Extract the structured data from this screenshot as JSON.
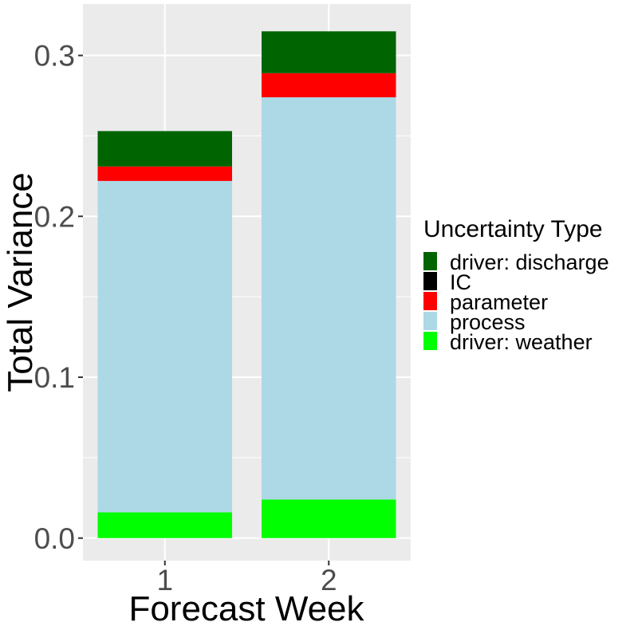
{
  "chart_data": {
    "type": "bar",
    "stacked": true,
    "xlabel": "Forecast Week",
    "ylabel": "Total Variance",
    "categories": [
      "1",
      "2"
    ],
    "ylim": [
      -0.014,
      0.332
    ],
    "yticks": [
      0.0,
      0.1,
      0.2,
      0.3
    ],
    "ytick_labels": [
      "0.0",
      "0.1",
      "0.2",
      "0.3"
    ],
    "grid": true,
    "background": "#ebebeb",
    "legend": {
      "title": "Uncertainty Type",
      "position": "right",
      "entries": [
        {
          "label": "driver: discharge",
          "color": "#006400"
        },
        {
          "label": "IC",
          "color": "#000000"
        },
        {
          "label": "parameter",
          "color": "#ff0000"
        },
        {
          "label": "process",
          "color": "#add8e6"
        },
        {
          "label": "driver: weather",
          "color": "#00ff00"
        }
      ]
    },
    "stack_order_bottom_to_top": [
      "driver: weather",
      "process",
      "IC",
      "parameter",
      "driver: discharge"
    ],
    "series": [
      {
        "name": "driver: weather",
        "color": "#00ff00",
        "values": [
          0.016,
          0.024
        ]
      },
      {
        "name": "process",
        "color": "#add8e6",
        "values": [
          0.206,
          0.25
        ]
      },
      {
        "name": "IC",
        "color": "#000000",
        "values": [
          0.0,
          0.0
        ]
      },
      {
        "name": "parameter",
        "color": "#ff0000",
        "values": [
          0.009,
          0.015
        ]
      },
      {
        "name": "driver: discharge",
        "color": "#006400",
        "values": [
          0.022,
          0.026
        ]
      }
    ]
  }
}
